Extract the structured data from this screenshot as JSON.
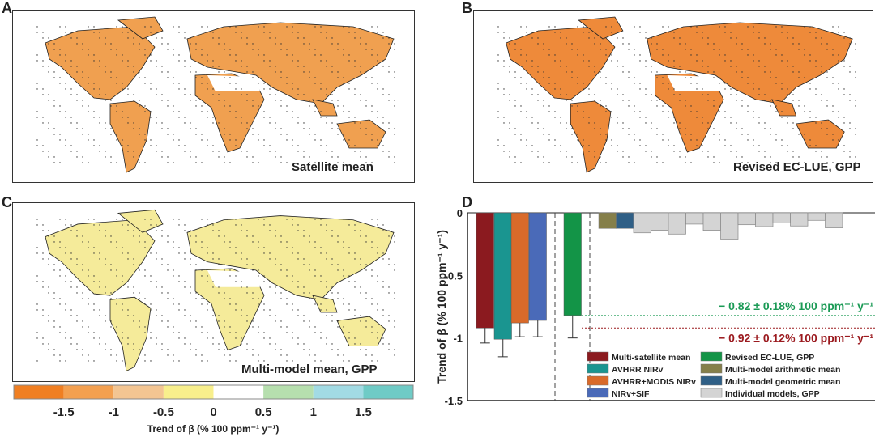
{
  "panels": {
    "a": "A",
    "b": "B",
    "c": "C",
    "d": "D"
  },
  "maps": [
    {
      "title": "Satellite mean",
      "land_color": "#f0a050",
      "dots": true
    },
    {
      "title": "Revised EC-LUE, GPP",
      "land_color": "#ee8a3a",
      "dots": true
    },
    {
      "title": "Multi-model mean, GPP",
      "land_color": "#f5eb9a",
      "dots": true
    }
  ],
  "colorbar": {
    "colors": [
      "#f07f22",
      "#f3a050",
      "#f3c592",
      "#f8ef8c",
      "#ffffff",
      "#b6dfae",
      "#a2dbe4",
      "#6fcbc6"
    ],
    "ticks": [
      "-1.5",
      "-1",
      "-0.5",
      "0",
      "0.5",
      "1",
      "1.5"
    ],
    "label": "Trend of β (% 100 ppm⁻¹ y⁻¹)"
  },
  "chart_data": {
    "type": "bar",
    "ylabel": "Trend of β (% 100 ppm⁻¹ y⁻¹)",
    "ylim": [
      -1.5,
      0
    ],
    "yticks": [
      "0",
      "-0.5",
      "-1",
      "-1.5"
    ],
    "series": [
      {
        "name": "Multi-satellite mean",
        "color": "#8b1a1f",
        "value": -0.92,
        "error_low": -1.04
      },
      {
        "name": "AVHRR NIRv",
        "color": "#1a9590",
        "value": -1.01,
        "error_low": -1.15
      },
      {
        "name": "AVHRR+MODIS NIRv",
        "color": "#d96a2a",
        "value": -0.88,
        "error_low": -0.99
      },
      {
        "name": "NIRv+SIF",
        "color": "#4a6ab8",
        "value": -0.86,
        "error_low": -0.99
      },
      {
        "name": "Revised EC-LUE, GPP",
        "color": "#139447",
        "value": -0.82,
        "error_low": -1.0
      },
      {
        "name": "Multi-model arithmetic mean",
        "color": "#857f4a",
        "value": -0.125
      },
      {
        "name": "Multi-model geometric mean",
        "color": "#2f5f86",
        "value": -0.125
      },
      {
        "name": "Individual models, GPP",
        "color": "#d4d4d4",
        "values": [
          -0.16,
          -0.14,
          -0.17,
          -0.09,
          -0.14,
          -0.21,
          -0.095,
          -0.11,
          -0.08,
          -0.105,
          -0.06,
          -0.12
        ]
      }
    ],
    "reference_lines": [
      {
        "value": -0.82,
        "color": "#1a9a55",
        "label": "− 0.82 ± 0.18% 100 ppm⁻¹ y⁻¹"
      },
      {
        "value": -0.92,
        "color": "#9b1a1f",
        "label": "− 0.92 ± 0.12% 100 ppm⁻¹ y⁻¹"
      }
    ],
    "legend_placement": "bottom-right"
  }
}
